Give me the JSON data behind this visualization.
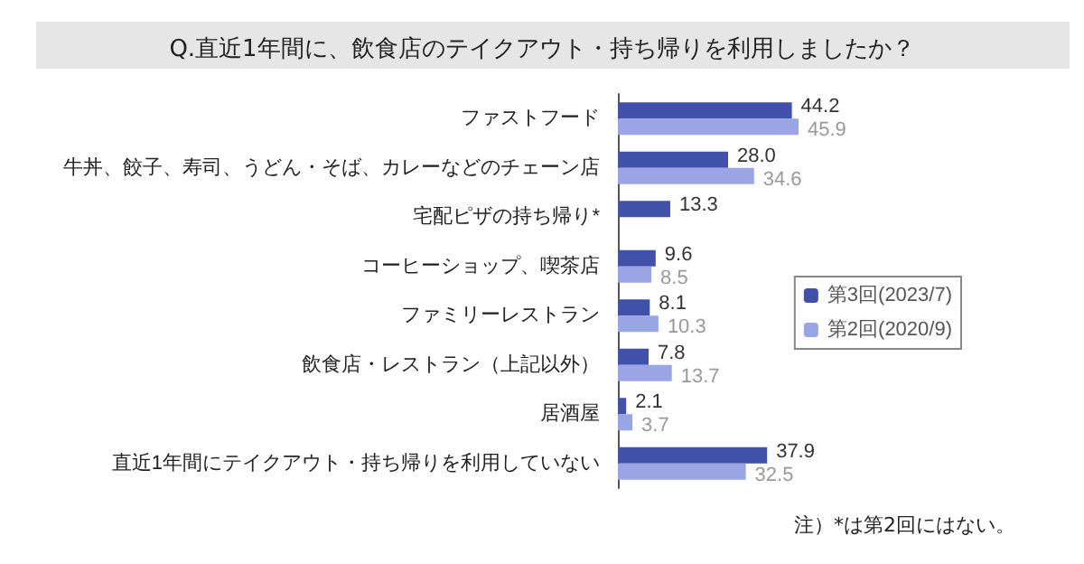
{
  "chart_data": {
    "type": "bar",
    "orientation": "horizontal",
    "title": "Q.直近1年間に、飲食店のテイクアウト・持ち帰りを利用しましたか？",
    "categories": [
      "ファストフード",
      "牛丼、餃子、寿司、うどん・そば、カレーなどのチェーン店",
      "宅配ピザの持ち帰り*",
      "コーヒーショップ、喫茶店",
      "ファミリーレストラン",
      "飲食店・レストラン（上記以外）",
      "居酒屋",
      "直近1年間にテイクアウト・持ち帰りを利用していない"
    ],
    "series": [
      {
        "name": "第3回(2023/7)",
        "color": "#4150a8",
        "values": [
          44.2,
          28.0,
          13.3,
          9.6,
          8.1,
          7.8,
          2.1,
          37.9
        ],
        "value_labels": [
          "44.2",
          "28.0",
          "13.3",
          "9.6",
          "8.1",
          "7.8",
          "2.1",
          "37.9"
        ]
      },
      {
        "name": "第2回(2020/9)",
        "color": "#9aa5e6",
        "values": [
          45.9,
          34.6,
          null,
          8.5,
          10.3,
          13.7,
          3.7,
          32.5
        ],
        "value_labels": [
          "45.9",
          "34.6",
          null,
          "8.5",
          "10.3",
          "13.7",
          "3.7",
          "32.5"
        ]
      }
    ],
    "legend": "right",
    "annotations": [
      "注）*は第2回にはない。"
    ]
  }
}
